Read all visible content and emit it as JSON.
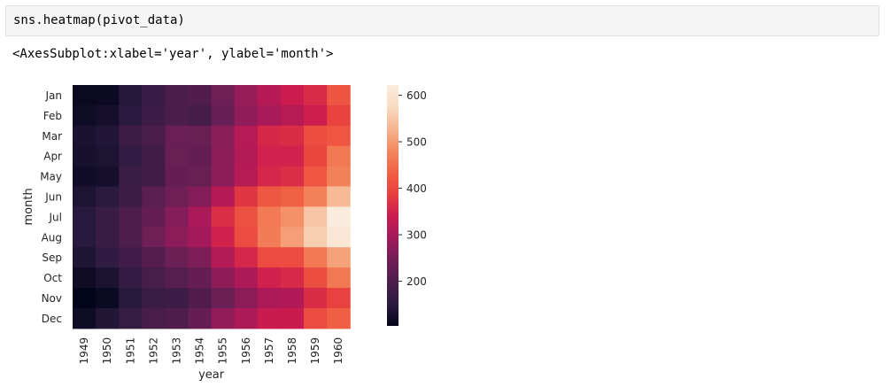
{
  "code_cell": {
    "code": "sns.heatmap(pivot_data)"
  },
  "output": {
    "text": "<AxesSubplot:xlabel='year', ylabel='month'>"
  },
  "chart_data": {
    "type": "heatmap",
    "title": "",
    "xlabel": "year",
    "ylabel": "month",
    "x": [
      "1949",
      "1950",
      "1951",
      "1952",
      "1953",
      "1954",
      "1955",
      "1956",
      "1957",
      "1958",
      "1959",
      "1960"
    ],
    "y": [
      "Jan",
      "Feb",
      "Mar",
      "Apr",
      "May",
      "Jun",
      "Jul",
      "Aug",
      "Sep",
      "Oct",
      "Nov",
      "Dec"
    ],
    "values": [
      [
        112,
        115,
        145,
        171,
        196,
        204,
        242,
        284,
        315,
        340,
        360,
        417
      ],
      [
        118,
        126,
        150,
        180,
        196,
        188,
        233,
        277,
        301,
        318,
        342,
        391
      ],
      [
        132,
        141,
        178,
        193,
        236,
        235,
        267,
        317,
        356,
        362,
        406,
        419
      ],
      [
        129,
        135,
        163,
        181,
        235,
        227,
        269,
        313,
        348,
        348,
        396,
        461
      ],
      [
        121,
        125,
        172,
        183,
        229,
        234,
        270,
        318,
        355,
        363,
        420,
        472
      ],
      [
        135,
        149,
        178,
        218,
        243,
        264,
        315,
        374,
        422,
        435,
        472,
        535
      ],
      [
        148,
        170,
        199,
        230,
        264,
        302,
        364,
        413,
        465,
        491,
        548,
        622
      ],
      [
        148,
        170,
        199,
        242,
        272,
        293,
        347,
        405,
        467,
        505,
        559,
        606
      ],
      [
        136,
        158,
        184,
        209,
        237,
        259,
        312,
        355,
        404,
        404,
        463,
        508
      ],
      [
        119,
        133,
        162,
        191,
        211,
        229,
        274,
        306,
        347,
        359,
        407,
        461
      ],
      [
        104,
        114,
        146,
        172,
        180,
        203,
        237,
        271,
        305,
        310,
        362,
        390
      ],
      [
        118,
        140,
        166,
        194,
        201,
        229,
        278,
        306,
        336,
        337,
        405,
        432
      ]
    ],
    "colorbar": {
      "min": 104,
      "max": 622,
      "ticks": [
        200,
        300,
        400,
        500,
        600
      ],
      "tick_labels": [
        "200",
        "300",
        "400",
        "500",
        "600"
      ]
    },
    "colormap": "rocket",
    "colormap_stops": [
      "#03051a",
      "#2b1b40",
      "#4c1d4b",
      "#701f57",
      "#a11a5b",
      "#cb1b4f",
      "#e83f3f",
      "#f06043",
      "#f3875e",
      "#f6b48f",
      "#f9dbc2",
      "#faebdd"
    ]
  }
}
